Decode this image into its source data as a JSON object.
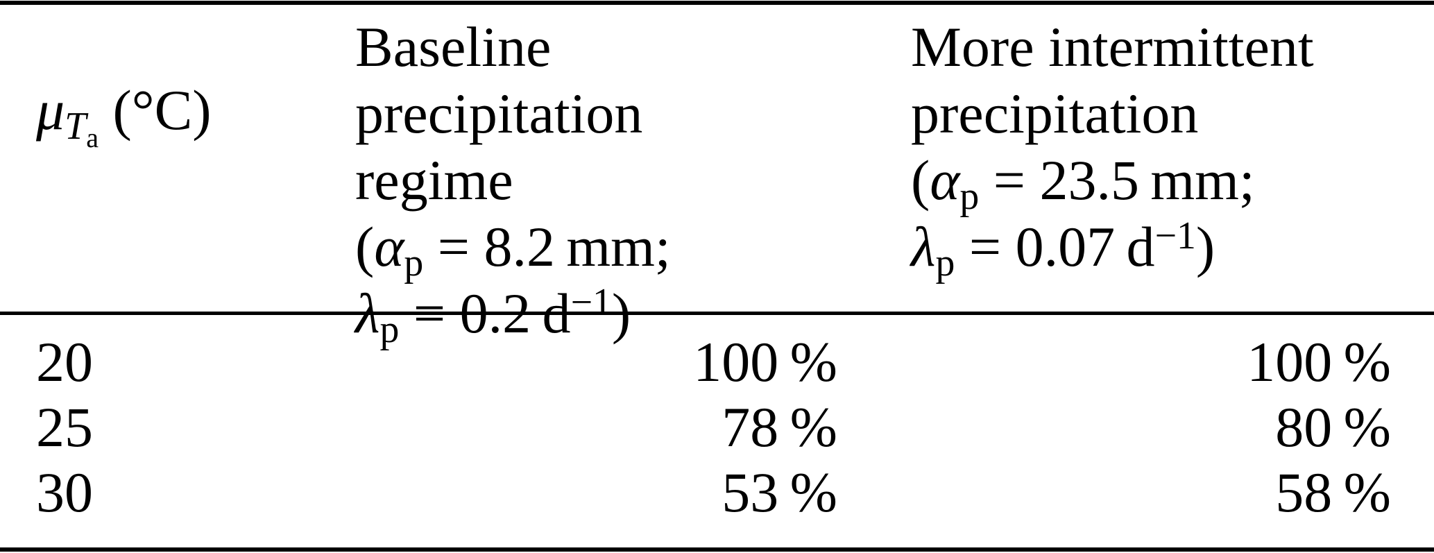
{
  "page": {
    "background": "#ffffff",
    "text_color": "#000000",
    "rule_color": "#000000"
  },
  "table": {
    "columns": [
      {
        "name": "mean_air_temperature",
        "symbol": "μ",
        "sub_main": "T",
        "sub_sub": "a",
        "unit": " (°C)"
      },
      {
        "name": "baseline_precipitation_regime",
        "title_line1": "Baseline precipitation",
        "title_line2": "regime",
        "alpha_open": "(",
        "alpha_symbol": "α",
        "alpha_sub": "p",
        "alpha_rest": " = 8.2 mm;",
        "lambda_symbol": "λ",
        "lambda_sub": "p",
        "lambda_mid": " = 0.2 d",
        "lambda_sup": "−1",
        "lambda_close": ")"
      },
      {
        "name": "more_intermittent_precipitation",
        "title_line1": "More intermittent",
        "title_line2": "precipitation",
        "alpha_open": "(",
        "alpha_symbol": "α",
        "alpha_sub": "p",
        "alpha_rest": " = 23.5 mm;",
        "lambda_symbol": "λ",
        "lambda_sub": "p",
        "lambda_mid": " = 0.07 d",
        "lambda_sup": "−1",
        "lambda_close": ")"
      }
    ],
    "rows": [
      {
        "temp": "20",
        "baseline": "100 %",
        "intermittent": "100 %"
      },
      {
        "temp": "25",
        "baseline": "78 %",
        "intermittent": "80 %"
      },
      {
        "temp": "30",
        "baseline": "53 %",
        "intermittent": "58 %"
      }
    ]
  }
}
